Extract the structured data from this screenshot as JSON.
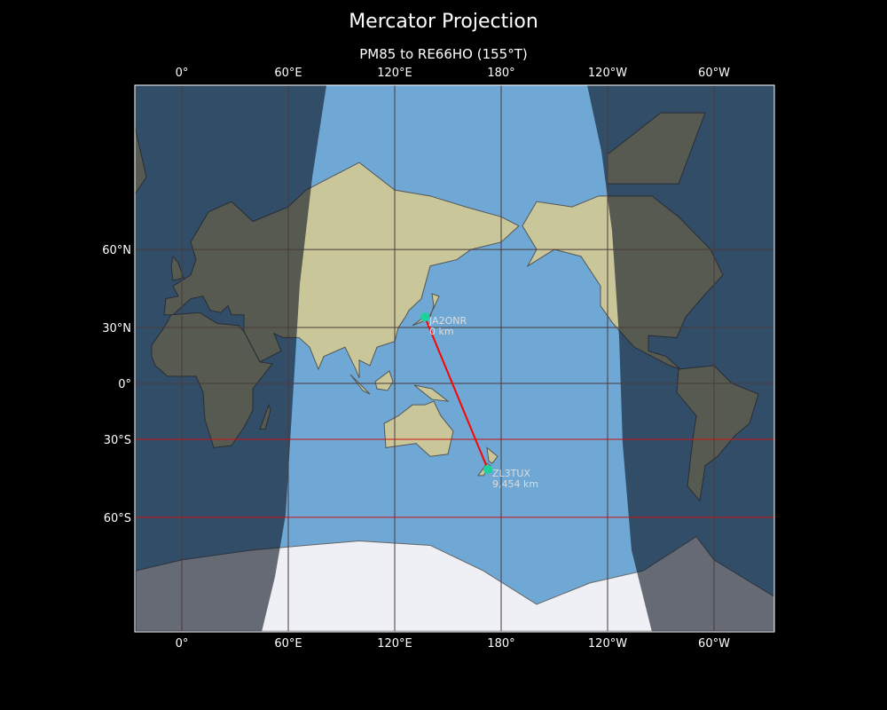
{
  "title": "Mercator Projection",
  "subtitle": "PM85 to RE66HO (155°T)",
  "axes": {
    "lon_ticks": [
      {
        "lon": 0,
        "label": "0°"
      },
      {
        "lon": 60,
        "label": "60°E"
      },
      {
        "lon": 120,
        "label": "120°E"
      },
      {
        "lon": 180,
        "label": "180°"
      },
      {
        "lon": 240,
        "label": "120°W"
      },
      {
        "lon": 300,
        "label": "60°W"
      }
    ],
    "lat_ticks": [
      {
        "lat": 60,
        "label": "60°N"
      },
      {
        "lat": 30,
        "label": "30°N"
      },
      {
        "lat": 0,
        "label": "0°"
      },
      {
        "lat": -30,
        "label": "30°S"
      },
      {
        "lat": -60,
        "label": "60°S"
      }
    ],
    "highlighted_parallels": [
      -30,
      -60
    ],
    "central_longitude": 154
  },
  "stations": [
    {
      "call": "JA2ONR",
      "distance": "0 km",
      "lon": 137,
      "lat": 35
    },
    {
      "call": "ZL3TUX",
      "distance": "9,454 km",
      "lon": 172.5,
      "lat": -43.5
    }
  ],
  "path": {
    "bearing": "155°T"
  },
  "colors": {
    "background": "#000000",
    "ocean": "#6fa8d4",
    "land": "#c9c79a",
    "ice": "#eef0f5",
    "night": "#0a1020",
    "path": "#ff0000",
    "station": "#19d39a",
    "highlight_parallel": "#cc1111",
    "grid": "#4a3a3a"
  }
}
